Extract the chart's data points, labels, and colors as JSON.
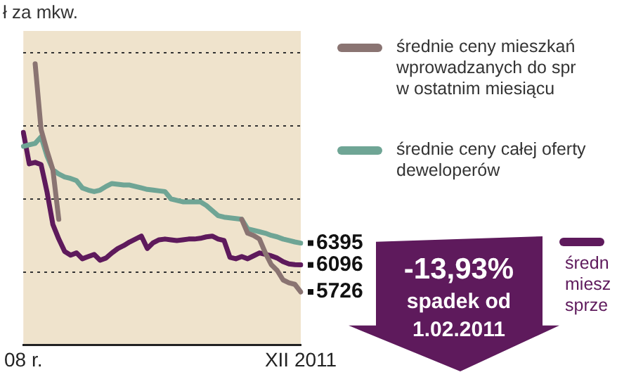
{
  "chart_data": {
    "type": "line",
    "title": "ł za mkw.",
    "categories": [
      "08 r.",
      null,
      null,
      null,
      null,
      null,
      null,
      null,
      null,
      null,
      null,
      null,
      null,
      null,
      null,
      null,
      null,
      null,
      null,
      null,
      null,
      null,
      null,
      null,
      null,
      null,
      null,
      null,
      null,
      null,
      null,
      null,
      null,
      null,
      null,
      null,
      null,
      null,
      null,
      null,
      null,
      null,
      null,
      null,
      null,
      null,
      null,
      "XII 2011"
    ],
    "ylim": [
      5000,
      9300
    ],
    "yticks": [
      {
        "value": 6000,
        "label": null
      },
      {
        "value": 7000,
        "label": null
      },
      {
        "value": 8000,
        "label": null
      },
      {
        "value": 9000,
        "label": null
      }
    ],
    "grid": "y",
    "legend": "right",
    "marker": "none",
    "line_style": "solid",
    "annotations": [
      "-13,93%",
      "spadek od",
      "1.02.2011"
    ],
    "series": [
      {
        "name": "średnie ceny mieszkań\nwprowadzanych do spr\nw ostatnim miesiącu",
        "color": "#8a7472",
        "values": [
          null,
          null,
          8850,
          7950,
          7660,
          7400,
          6720,
          null,
          null,
          null,
          null,
          null,
          null,
          null,
          null,
          null,
          null,
          null,
          null,
          null,
          null,
          null,
          null,
          null,
          null,
          null,
          null,
          null,
          null,
          null,
          null,
          null,
          null,
          null,
          null,
          null,
          null,
          6720,
          6530,
          6500,
          6450,
          6260,
          6100,
          6020,
          5890,
          5850,
          5830,
          5726
        ],
        "value_labels": [
          null,
          null,
          null,
          null,
          null,
          null,
          null,
          null,
          null,
          null,
          null,
          null,
          null,
          null,
          null,
          null,
          null,
          null,
          null,
          null,
          null,
          null,
          null,
          null,
          null,
          null,
          null,
          null,
          null,
          null,
          null,
          null,
          null,
          null,
          null,
          null,
          null,
          null,
          null,
          null,
          null,
          null,
          null,
          null,
          null,
          null,
          null,
          "5726"
        ]
      },
      {
        "name": "średnie ceny całej oferty\ndeweloperów",
        "color": "#6fa595",
        "values": [
          7720,
          7740,
          7760,
          7850,
          7590,
          7400,
          7340,
          7300,
          7280,
          7250,
          7150,
          7120,
          7100,
          7120,
          7170,
          7210,
          7200,
          7190,
          7190,
          7170,
          7150,
          7130,
          7120,
          7110,
          7100,
          7000,
          6980,
          6960,
          6960,
          6960,
          6960,
          6910,
          6840,
          6770,
          6750,
          6740,
          6730,
          6720,
          6590,
          6570,
          6550,
          6530,
          6500,
          6480,
          6450,
          6430,
          6410,
          6395
        ],
        "value_labels": [
          null,
          null,
          null,
          null,
          null,
          null,
          null,
          null,
          null,
          null,
          null,
          null,
          null,
          null,
          null,
          null,
          null,
          null,
          null,
          null,
          null,
          null,
          null,
          null,
          null,
          null,
          null,
          null,
          null,
          null,
          null,
          null,
          null,
          null,
          null,
          null,
          null,
          null,
          null,
          null,
          null,
          null,
          null,
          null,
          null,
          null,
          null,
          "6395"
        ]
      },
      {
        "name": "średn\nmiesz\nsprze",
        "color": "#5e1a5c",
        "values": [
          7910,
          7480,
          7500,
          7470,
          7100,
          6650,
          6450,
          6280,
          6230,
          6260,
          6180,
          6210,
          6240,
          6160,
          6190,
          6260,
          6320,
          6360,
          6410,
          6450,
          6490,
          6320,
          6400,
          6440,
          6450,
          6440,
          6430,
          6440,
          6450,
          6450,
          6460,
          6480,
          6490,
          6450,
          6430,
          6200,
          6180,
          6210,
          6180,
          6220,
          6260,
          6240,
          6220,
          6190,
          6140,
          6110,
          6100,
          6096
        ],
        "value_labels": [
          null,
          null,
          null,
          null,
          null,
          null,
          null,
          null,
          null,
          null,
          null,
          null,
          null,
          null,
          null,
          null,
          null,
          null,
          null,
          null,
          null,
          null,
          null,
          null,
          null,
          null,
          null,
          null,
          null,
          null,
          null,
          null,
          null,
          null,
          null,
          null,
          null,
          null,
          null,
          null,
          null,
          null,
          null,
          null,
          null,
          null,
          null,
          "6096"
        ]
      }
    ]
  }
}
